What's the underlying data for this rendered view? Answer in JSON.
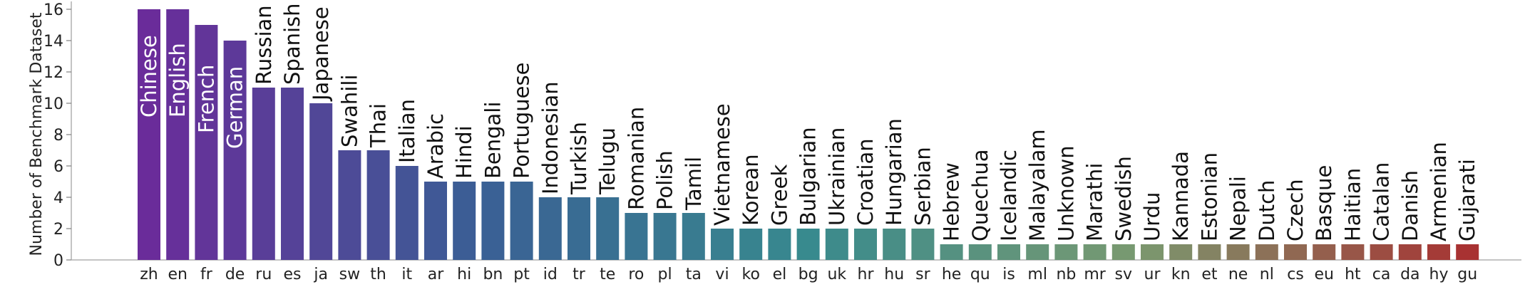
{
  "chart_data": {
    "type": "bar",
    "title": "",
    "xlabel": "",
    "ylabel": "Number of Benchmark Dataset",
    "ylim": [
      0,
      16.5
    ],
    "yticks": [
      0,
      2,
      4,
      6,
      8,
      10,
      12,
      14,
      16
    ],
    "grid": false,
    "categories": [
      "zh",
      "en",
      "fr",
      "de",
      "ru",
      "es",
      "ja",
      "sw",
      "th",
      "it",
      "ar",
      "hi",
      "bn",
      "pt",
      "id",
      "tr",
      "te",
      "ro",
      "pl",
      "ta",
      "vi",
      "ko",
      "el",
      "bg",
      "uk",
      "hr",
      "hu",
      "sr",
      "he",
      "qu",
      "is",
      "ml",
      "nb",
      "mr",
      "sv",
      "ur",
      "kn",
      "et",
      "ne",
      "nl",
      "cs",
      "eu",
      "ht",
      "ca",
      "da",
      "hy",
      "gu"
    ],
    "language_names": [
      "Chinese",
      "English",
      "French",
      "German",
      "Russian",
      "Spanish",
      "Japanese",
      "Swahili",
      "Thai",
      "Italian",
      "Arabic",
      "Hindi",
      "Bengali",
      "Portuguese",
      "Indonesian",
      "Turkish",
      "Telugu",
      "Romanian",
      "Polish",
      "Tamil",
      "Vietnamese",
      "Korean",
      "Greek",
      "Bulgarian",
      "Ukrainian",
      "Croatian",
      "Hungarian",
      "Serbian",
      "Hebrew",
      "Quechua",
      "Icelandic",
      "Malayalam",
      "Unknown",
      "Marathi",
      "Swedish",
      "Urdu",
      "Kannada",
      "Estonian",
      "Nepali",
      "Dutch",
      "Czech",
      "Basque",
      "Haitian",
      "Catalan",
      "Danish",
      "Armenian",
      "Gujarati"
    ],
    "values": [
      16,
      16,
      15,
      14,
      11,
      11,
      10,
      7,
      7,
      6,
      5,
      5,
      5,
      5,
      4,
      4,
      4,
      3,
      3,
      3,
      2,
      2,
      2,
      2,
      2,
      2,
      2,
      2,
      1,
      1,
      1,
      1,
      1,
      1,
      1,
      1,
      1,
      1,
      1,
      1,
      1,
      1,
      1,
      1,
      1,
      1,
      1
    ],
    "label_inside_bar_count": 4,
    "colors": {
      "gradient_start": "#6a2c9a",
      "gradient_mid1": "#3a5f95",
      "gradient_mid2": "#388a8e",
      "gradient_mid3": "#7a9a70",
      "gradient_end": "#a83232",
      "inside_label": "#ffffff",
      "outside_label": "#111111"
    }
  }
}
